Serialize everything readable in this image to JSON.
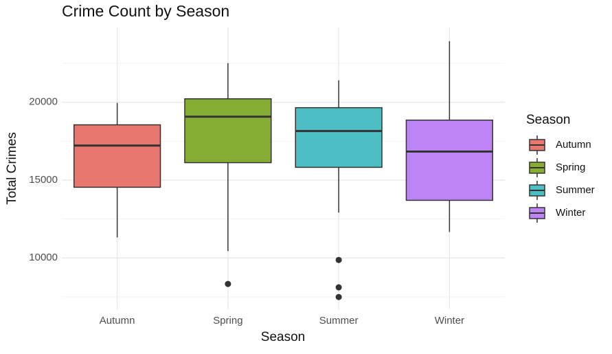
{
  "chart_data": {
    "type": "box",
    "title": "Crime Count by Season",
    "x_label": "Season",
    "y_label": "Total Crimes",
    "legend_title": "Season",
    "categories": [
      "Autumn",
      "Spring",
      "Summer",
      "Winter"
    ],
    "colors": [
      "#e7776f",
      "#86ad33",
      "#4dbec3",
      "#bd84f5"
    ],
    "boxes": [
      {
        "whisker_low": 11320,
        "q1": 14540,
        "median": 17220,
        "q3": 18550,
        "whisker_high": 19960,
        "outliers": []
      },
      {
        "whisker_low": 10440,
        "q1": 16120,
        "median": 19070,
        "q3": 20220,
        "whisker_high": 22510,
        "outliers": [
          8330
        ]
      },
      {
        "whisker_low": 12910,
        "q1": 15820,
        "median": 18150,
        "q3": 19650,
        "whisker_high": 21410,
        "outliers": [
          9870,
          8110,
          7490
        ]
      },
      {
        "whisker_low": 11670,
        "q1": 13700,
        "median": 16830,
        "q3": 18850,
        "whisker_high": 23920,
        "outliers": []
      }
    ],
    "ylim": [
      6700,
      24800
    ],
    "yticks": [
      10000,
      15000,
      20000
    ],
    "y_minor_grid": [
      7500,
      12500,
      17500,
      22500
    ],
    "grid": true,
    "legend_position": "right"
  }
}
